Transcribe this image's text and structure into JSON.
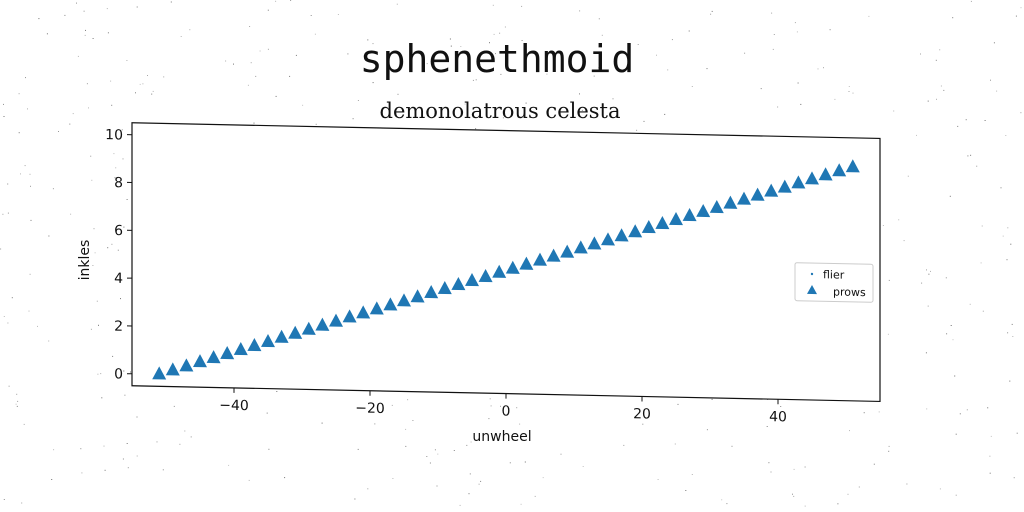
{
  "suptitle": "sphenethmoid",
  "chart_data": {
    "type": "scatter",
    "title": "demonolatrous celesta",
    "xlabel": "unwheel",
    "ylabel": "inkles",
    "xlim": [
      -55,
      55
    ],
    "ylim": [
      -0.5,
      10.5
    ],
    "xticks": [
      -40,
      -20,
      0,
      20,
      40
    ],
    "xtick_labels": [
      "−40",
      "−20",
      "0",
      "20",
      "40"
    ],
    "yticks": [
      0,
      2,
      4,
      6,
      8,
      10
    ],
    "ytick_labels": [
      "0",
      "2",
      "4",
      "6",
      "8",
      "10"
    ],
    "grid": false,
    "legend_position": "center-right",
    "series": [
      {
        "name": "flier",
        "marker": "point",
        "color": "#1f77b4",
        "x": [],
        "y": []
      },
      {
        "name": "prows",
        "marker": "triangle-up",
        "color": "#1f77b4",
        "x": [
          -51,
          -49,
          -47,
          -45,
          -43,
          -41,
          -39,
          -37,
          -35,
          -33,
          -31,
          -29,
          -27,
          -25,
          -23,
          -21,
          -19,
          -17,
          -15,
          -13,
          -11,
          -9,
          -7,
          -5,
          -3,
          -1,
          1,
          3,
          5,
          7,
          9,
          11,
          13,
          15,
          17,
          19,
          21,
          23,
          25,
          27,
          29,
          31,
          33,
          35,
          37,
          39,
          41,
          43,
          45,
          47,
          49,
          51
        ],
        "y": [
          0.0,
          0.18,
          0.36,
          0.55,
          0.73,
          0.91,
          1.09,
          1.27,
          1.45,
          1.64,
          1.82,
          2.0,
          2.18,
          2.36,
          2.55,
          2.73,
          2.91,
          3.09,
          3.27,
          3.45,
          3.64,
          3.82,
          4.0,
          4.18,
          4.36,
          4.55,
          4.73,
          4.91,
          5.09,
          5.27,
          5.45,
          5.64,
          5.82,
          6.0,
          6.18,
          6.36,
          6.55,
          6.73,
          6.91,
          7.09,
          7.27,
          7.45,
          7.64,
          7.82,
          8.0,
          8.18,
          8.36,
          8.55,
          8.73,
          8.91,
          9.09,
          9.27
        ]
      }
    ]
  }
}
